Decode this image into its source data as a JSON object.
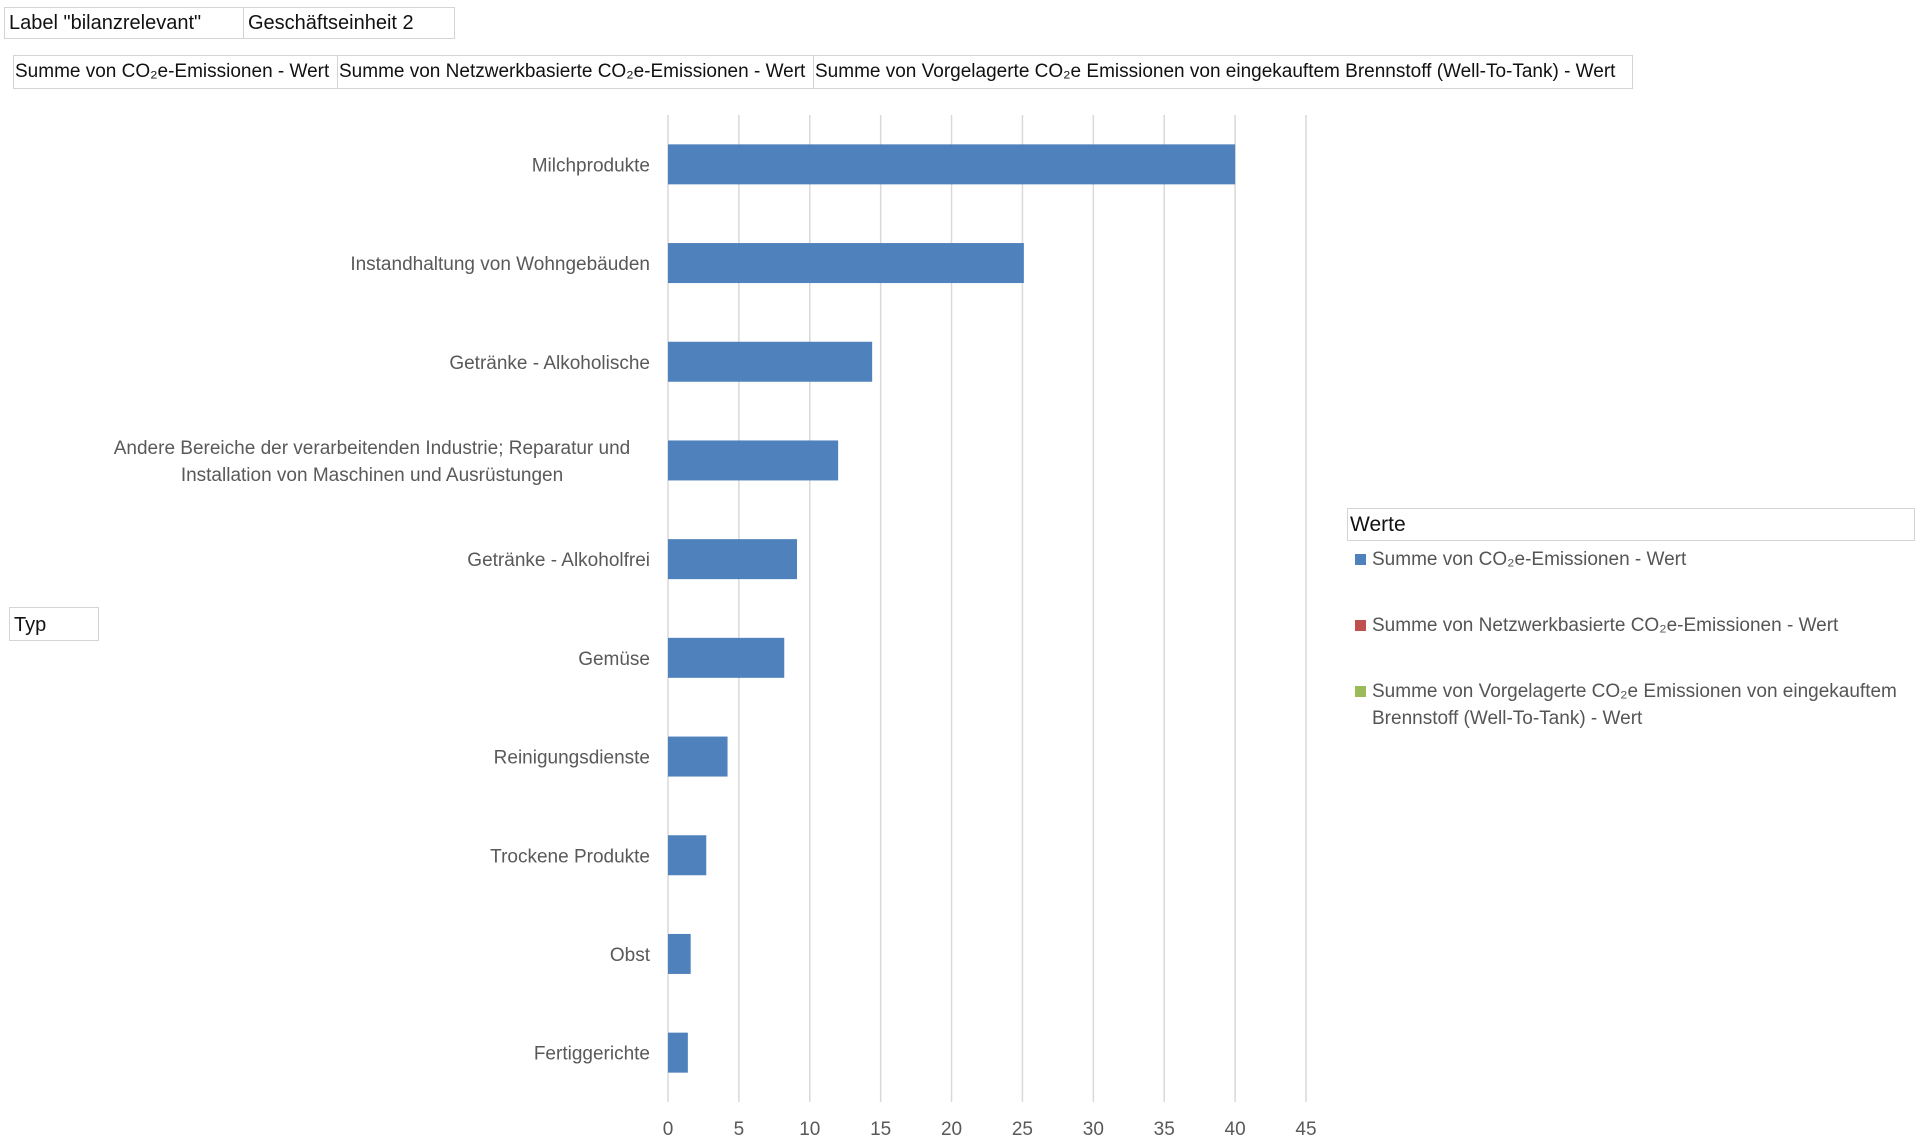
{
  "filters": {
    "label_field": "Label \"bilanzrelevant\"",
    "label_value": "Geschäftseinheit 2"
  },
  "value_fields": [
    "Summe von CO₂e-Emissionen - Wert",
    "Summe von Netzwerkbasierte CO₂e-Emissionen - Wert",
    "Summe von Vorgelagerte CO₂e Emissionen von eingekauftem Brennstoff (Well-To-Tank) - Wert"
  ],
  "row_field": "Typ",
  "legend": {
    "title": "Werte",
    "entries": [
      {
        "label": "Summe von CO₂e-Emissionen - Wert",
        "color": "#4f81bd"
      },
      {
        "label": "Summe von Netzwerkbasierte CO₂e-Emissionen - Wert",
        "color": "#c0504d"
      },
      {
        "label": "Summe von Vorgelagerte CO₂e Emissionen von eingekauftem Brennstoff (Well-To-Tank) - Wert",
        "color": "#9bbb59"
      }
    ]
  },
  "chart_data": {
    "type": "bar",
    "orientation": "horizontal",
    "title": "",
    "xlabel": "",
    "ylabel": "Typ",
    "categories": [
      "Milchprodukte",
      "Instandhaltung von Wohngebäuden",
      "Getränke - Alkoholische",
      "Andere Bereiche der verarbeitenden Industrie; Reparatur und Installation von Maschinen und Ausrüstungen",
      "Getränke - Alkoholfrei",
      "Gemüse",
      "Reinigungsdienste",
      "Trockene Produkte",
      "Obst",
      "Fertiggerichte"
    ],
    "category_lines": [
      [
        "Milchprodukte"
      ],
      [
        "Instandhaltung von Wohngebäuden"
      ],
      [
        "Getränke - Alkoholische"
      ],
      [
        "Andere Bereiche der verarbeitenden Industrie; Reparatur und",
        "Installation von Maschinen und Ausrüstungen"
      ],
      [
        "Getränke - Alkoholfrei"
      ],
      [
        "Gemüse"
      ],
      [
        "Reinigungsdienste"
      ],
      [
        "Trockene Produkte"
      ],
      [
        "Obst"
      ],
      [
        "Fertiggerichte"
      ]
    ],
    "series": [
      {
        "name": "Summe von CO₂e-Emissionen - Wert",
        "color": "#4f81bd",
        "values": [
          40.0,
          25.1,
          14.4,
          12.0,
          9.1,
          8.2,
          4.2,
          2.7,
          1.6,
          1.4
        ]
      },
      {
        "name": "Summe von Netzwerkbasierte CO₂e-Emissionen - Wert",
        "color": "#c0504d",
        "values": [
          0,
          0,
          0,
          0,
          0,
          0,
          0,
          0,
          0,
          0
        ]
      },
      {
        "name": "Summe von Vorgelagerte CO₂e Emissionen von eingekauftem Brennstoff (Well-To-Tank) - Wert",
        "color": "#9bbb59",
        "values": [
          0,
          0,
          0,
          0,
          0,
          0,
          0,
          0,
          0,
          0
        ]
      }
    ],
    "xlim": [
      0,
      45
    ],
    "xticks": [
      0,
      5,
      10,
      15,
      20,
      25,
      30,
      35,
      40,
      45
    ],
    "grid": true,
    "legend_position": "right"
  }
}
